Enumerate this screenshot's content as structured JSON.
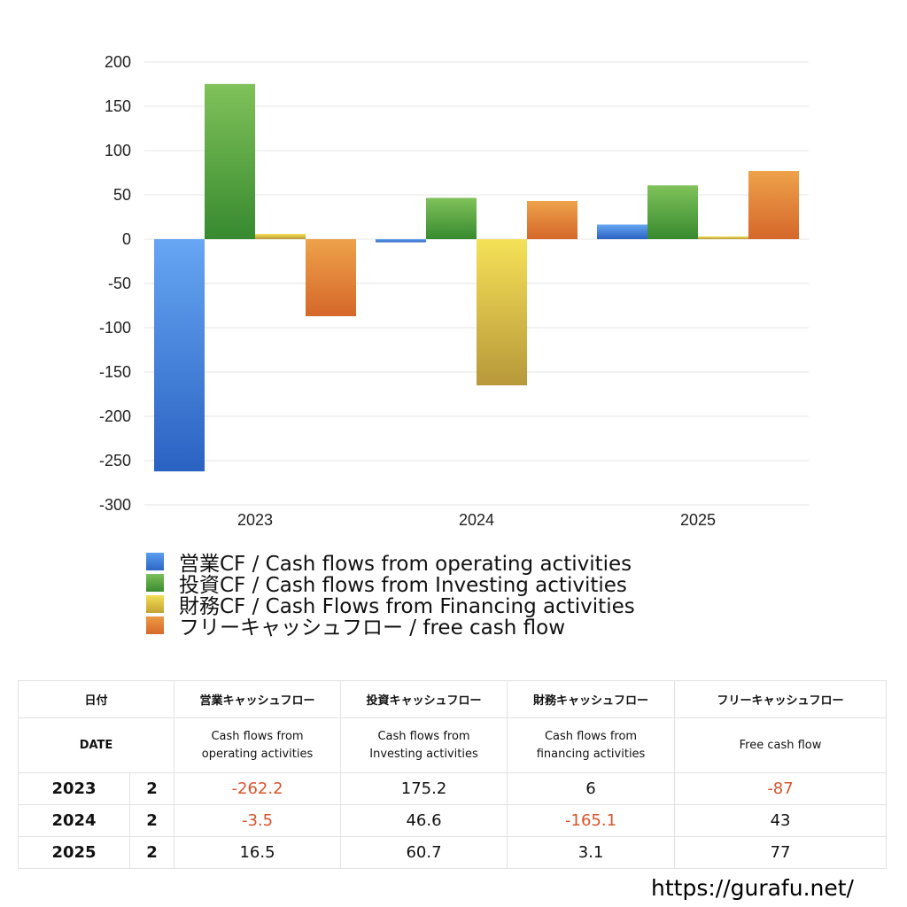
{
  "chart_data": {
    "type": "bar",
    "categories": [
      "2023",
      "2024",
      "2025"
    ],
    "series": [
      {
        "name": "営業CF / Cash flows from operating activities",
        "values": [
          -262.2,
          -3.5,
          16.5
        ],
        "color": "#3c7fdc"
      },
      {
        "name": "投資CF / Cash flows from Investing activities",
        "values": [
          175.2,
          46.6,
          60.7
        ],
        "color": "#4f9e3c"
      },
      {
        "name": "財務CF / Cash Flows from Financing activities",
        "values": [
          6,
          -165.1,
          3.1
        ],
        "color": "#e0c33a"
      },
      {
        "name": "フリーキャッシュフロー / free cash flow",
        "values": [
          -87,
          43,
          77
        ],
        "color": "#e2792e"
      }
    ],
    "ylim": [
      -300,
      200
    ],
    "yticks": [
      200,
      150,
      100,
      50,
      0,
      -50,
      -100,
      -150,
      -200,
      -250,
      -300
    ],
    "grid": true,
    "legend_position": "bottom-left"
  },
  "table": {
    "headers": [
      "日付",
      "営業キャッシュフロー",
      "投資キャッシュフロー",
      "財務キャッシュフロー",
      "フリーキャッシュフロー"
    ],
    "subheaders": {
      "date": "DATE",
      "operating": [
        "Cash flows from",
        "operating activities"
      ],
      "investing": [
        "Cash flows from",
        "Investing activities"
      ],
      "financing": [
        "Cash flows from",
        "financing activities"
      ],
      "free": "Free cash flow"
    },
    "rows": [
      {
        "year": "2023",
        "q": "2",
        "op": "-262.2",
        "inv": "175.2",
        "fin": "6",
        "free": "-87"
      },
      {
        "year": "2024",
        "q": "2",
        "op": "-3.5",
        "inv": "46.6",
        "fin": "-165.1",
        "free": "43"
      },
      {
        "year": "2025",
        "q": "2",
        "op": "16.5",
        "inv": "60.7",
        "fin": "3.1",
        "free": "77"
      }
    ]
  },
  "footer": {
    "url": "https://gurafu.net/"
  }
}
